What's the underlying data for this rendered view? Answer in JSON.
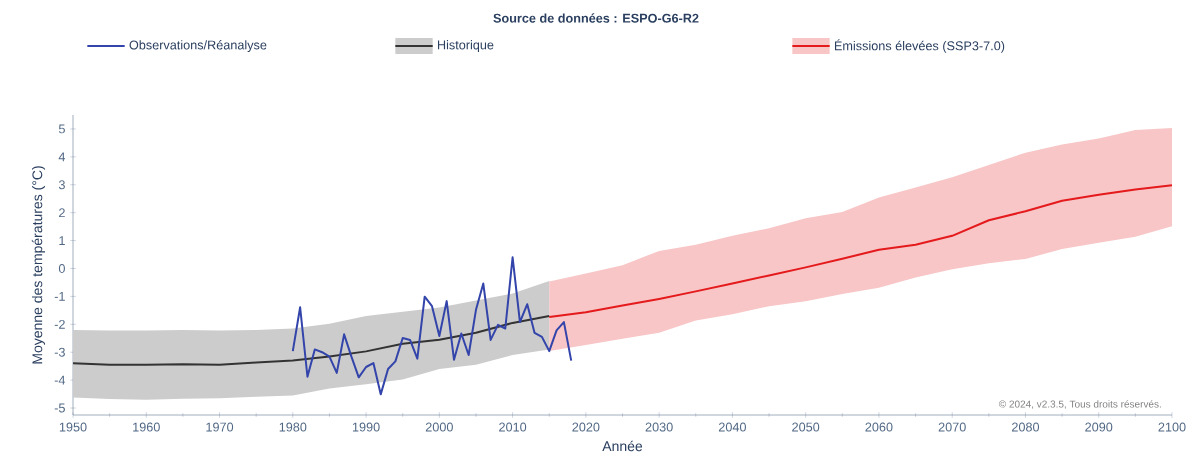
{
  "chart_data": {
    "type": "line",
    "title": "Source de données : ESPO-G6-R2",
    "xlabel": "Année",
    "ylabel": "Moyenne des températures (°C)",
    "xlim": [
      1950,
      2100
    ],
    "ylim": [
      -5.25,
      5.5
    ],
    "xticks": [
      1950,
      1960,
      1970,
      1980,
      1990,
      2000,
      2010,
      2020,
      2030,
      2040,
      2050,
      2060,
      2070,
      2080,
      2090,
      2100
    ],
    "yticks": [
      -5,
      -4,
      -3,
      -2,
      -1,
      0,
      1,
      2,
      3,
      4,
      5
    ],
    "legend": "top",
    "grid": false,
    "marker": "none",
    "line_style": "solid",
    "annotations": [
      "© 2024, v2.3.5, Tous droits réservés."
    ],
    "series": [
      {
        "name": "Observations/Réanalyse",
        "color": "#3344aa",
        "x": [
          1980,
          1981,
          1982,
          1983,
          1984,
          1985,
          1986,
          1987,
          1988,
          1989,
          1990,
          1991,
          1992,
          1993,
          1994,
          1995,
          1996,
          1997,
          1998,
          1999,
          2000,
          2001,
          2002,
          2003,
          2004,
          2005,
          2006,
          2007,
          2008,
          2009,
          2010,
          2011,
          2012,
          2013,
          2014,
          2015,
          2016,
          2017,
          2018
        ],
        "values": [
          -2.96,
          -1.39,
          -3.88,
          -2.9,
          -3.0,
          -3.16,
          -3.74,
          -2.36,
          -3.16,
          -3.9,
          -3.53,
          -3.39,
          -4.51,
          -3.6,
          -3.33,
          -2.49,
          -2.56,
          -3.23,
          -1.01,
          -1.35,
          -2.42,
          -1.17,
          -3.27,
          -2.33,
          -3.1,
          -1.48,
          -0.54,
          -2.56,
          -2.02,
          -2.15,
          0.4,
          -1.92,
          -1.28,
          -2.31,
          -2.45,
          -2.96,
          -2.22,
          -1.92,
          -3.3
        ]
      },
      {
        "name": "Historique",
        "color": "#333333",
        "x": [
          1950,
          1955,
          1960,
          1965,
          1970,
          1975,
          1980,
          1985,
          1990,
          1995,
          2000,
          2005,
          2010,
          2015
        ],
        "values": [
          -3.4,
          -3.45,
          -3.45,
          -3.43,
          -3.45,
          -3.37,
          -3.3,
          -3.15,
          -2.97,
          -2.7,
          -2.55,
          -2.3,
          -1.95,
          -1.7
        ],
        "lower": [
          -4.62,
          -4.68,
          -4.7,
          -4.67,
          -4.65,
          -4.6,
          -4.55,
          -4.3,
          -4.15,
          -3.98,
          -3.6,
          -3.45,
          -3.1,
          -2.9
        ],
        "upper": [
          -2.2,
          -2.22,
          -2.22,
          -2.2,
          -2.22,
          -2.2,
          -2.15,
          -1.98,
          -1.7,
          -1.55,
          -1.4,
          -1.15,
          -0.9,
          -0.45
        ]
      },
      {
        "name": "Émissions élevées (SSP3-7.0)",
        "color": "#e41a1c",
        "x": [
          2015,
          2020,
          2025,
          2030,
          2035,
          2040,
          2045,
          2050,
          2055,
          2060,
          2065,
          2070,
          2075,
          2080,
          2085,
          2090,
          2095,
          2100
        ],
        "values": [
          -1.74,
          -1.57,
          -1.33,
          -1.09,
          -0.82,
          -0.54,
          -0.25,
          0.04,
          0.35,
          0.67,
          0.85,
          1.17,
          1.73,
          2.05,
          2.43,
          2.64,
          2.83,
          2.98
        ],
        "lower": [
          -2.96,
          -2.74,
          -2.52,
          -2.3,
          -1.86,
          -1.64,
          -1.35,
          -1.17,
          -0.91,
          -0.69,
          -0.32,
          -0.03,
          0.19,
          0.34,
          0.7,
          0.92,
          1.14,
          1.51
        ],
        "upper": [
          -0.47,
          -0.18,
          0.12,
          0.63,
          0.85,
          1.17,
          1.44,
          1.8,
          2.02,
          2.54,
          2.9,
          3.27,
          3.71,
          4.15,
          4.44,
          4.66,
          4.96,
          5.03
        ]
      }
    ]
  }
}
